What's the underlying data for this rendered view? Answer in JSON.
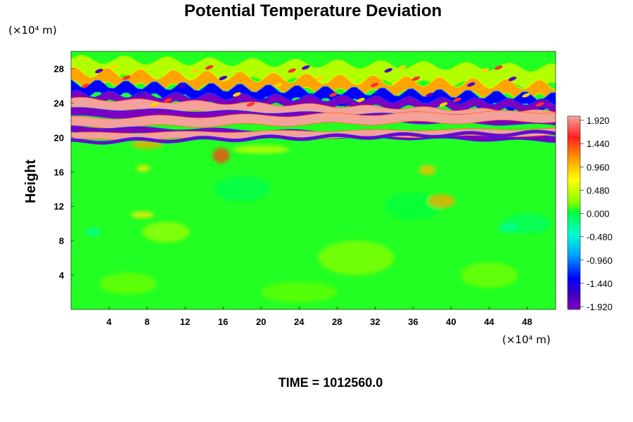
{
  "chart_data": {
    "type": "heatmap",
    "title": "Potential Temperature Deviation",
    "ylabel": "Height",
    "x_unit": "(×10⁴ m)",
    "y_unit": "(×10⁴ m)",
    "x_ticks": [
      4,
      8,
      12,
      16,
      20,
      24,
      28,
      32,
      36,
      40,
      44,
      48
    ],
    "y_ticks": [
      4,
      8,
      12,
      16,
      20,
      24,
      28
    ],
    "xlim": [
      0,
      51
    ],
    "ylim": [
      0,
      30
    ],
    "colorbar": {
      "labels": [
        "1.920",
        "1.440",
        "0.960",
        "0.480",
        "0.000",
        "-0.480",
        "-0.960",
        "-1.440",
        "-1.920"
      ],
      "range": [
        -1.92,
        1.92
      ]
    },
    "bands": [
      {
        "y": 20.2,
        "value": -1.9,
        "note": "purple band"
      },
      {
        "y": 21.2,
        "value": 1.9,
        "note": "pink band"
      },
      {
        "y": 22.3,
        "value": -1.9,
        "note": "purple band"
      },
      {
        "y": 24.0,
        "value": 1.9,
        "note": "pink band"
      },
      {
        "y": 25.5,
        "value": -1.5,
        "note": "blue/purple band"
      },
      {
        "y": 27.0,
        "value": 0.8,
        "note": "orange/red waves"
      }
    ],
    "grid": false
  },
  "footer": {
    "time_label": "TIME = 1012560.0"
  }
}
